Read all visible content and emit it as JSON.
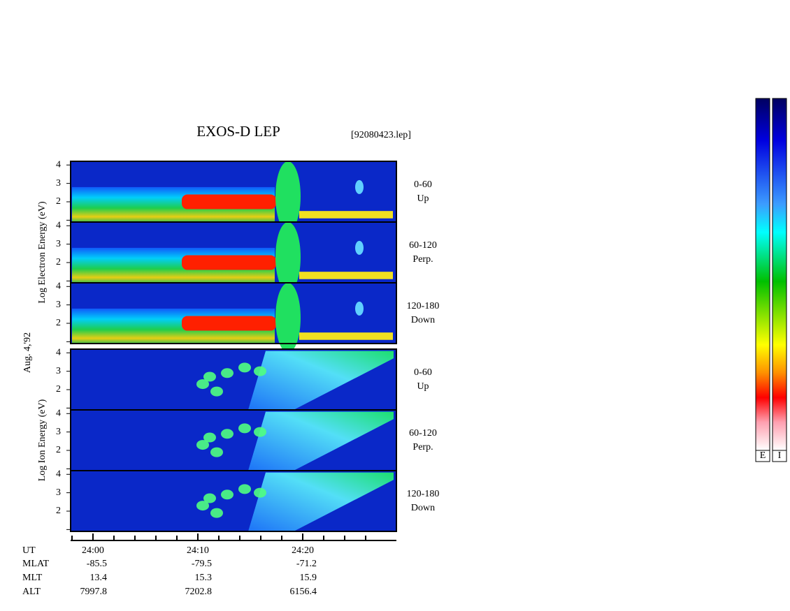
{
  "chart_data": {
    "type": "spectrogram",
    "title": "EXOS-D LEP",
    "subtitle": "[92080423.lep]",
    "date": "Aug. 4,'92",
    "groups": [
      {
        "ylabel": "Log Electron Energy (eV)",
        "species": "E",
        "panels": [
          {
            "angle": "0-60",
            "direction": "Up"
          },
          {
            "angle": "60-120",
            "direction": "Perp."
          },
          {
            "angle": "120-180",
            "direction": "Down"
          }
        ]
      },
      {
        "ylabel": "Log Ion Energy (eV)",
        "species": "I",
        "panels": [
          {
            "angle": "0-60",
            "direction": "Up"
          },
          {
            "angle": "60-120",
            "direction": "Perp."
          },
          {
            "angle": "120-180",
            "direction": "Down"
          }
        ]
      }
    ],
    "ylim": [
      0.9,
      4.2
    ],
    "yticks": [
      2,
      3,
      4
    ],
    "yminor": [
      1
    ],
    "xlim": [
      1437.87,
      1468.93
    ],
    "xticks": [
      {
        "value": 1440,
        "label": "24:00"
      },
      {
        "value": 1450,
        "label": "24:10"
      },
      {
        "value": 1460,
        "label": "24:20"
      }
    ],
    "xminor": [
      1438,
      1442,
      1444,
      1446,
      1448,
      1452,
      1454,
      1456,
      1458,
      1462,
      1464,
      1466
    ],
    "xlabel": "UT",
    "ephemeris": [
      {
        "label": "MLAT",
        "values": [
          -85.5,
          -79.5,
          -71.2
        ]
      },
      {
        "label": "MLT",
        "values": [
          13.4,
          15.3,
          15.9
        ]
      },
      {
        "label": "ALT",
        "values": [
          7997.8,
          7202.8,
          6156.4
        ]
      }
    ]
  }
}
